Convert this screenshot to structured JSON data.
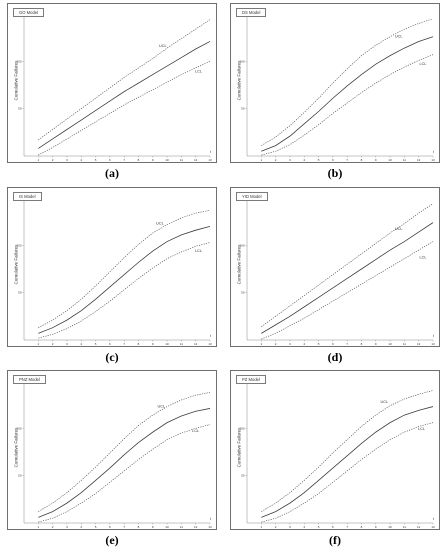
{
  "figure": {
    "panels": [
      {
        "id": "a",
        "caption": "(a)",
        "model_label": "GO Model",
        "chart_data": {
          "type": "line",
          "xlabel": "t",
          "ylabel": "Cumulative Failures",
          "xlim": [
            0,
            13
          ],
          "ylim": [
            0,
            150
          ],
          "x_ticks": [
            "1",
            "2",
            "3",
            "4",
            "5",
            "6",
            "7",
            "8",
            "9",
            "10",
            "11",
            "12",
            "13"
          ],
          "y_ticks": [
            "50",
            "100",
            "150"
          ],
          "x": [
            1,
            2,
            3,
            4,
            5,
            6,
            7,
            8,
            9,
            10,
            11,
            12,
            13
          ],
          "series": [
            {
              "name": "UCL",
              "style": "dotted",
              "values": [
                17,
                28,
                39,
                50,
                61,
                72,
                83,
                93,
                103,
                114,
                124,
                134,
                144
              ]
            },
            {
              "name": "",
              "style": "solid",
              "values": [
                8,
                18,
                28,
                38,
                48,
                58,
                68,
                77,
                86,
                95,
                104,
                113,
                121
              ]
            },
            {
              "name": "LCL",
              "style": "dotted",
              "values": [
                1,
                9,
                18,
                27,
                36,
                45,
                54,
                62,
                70,
                78,
                86,
                93,
                100
              ]
            }
          ],
          "annotations": [
            {
              "text": "UCL",
              "x": 9.7,
              "y": 115
            },
            {
              "text": "LCL",
              "x": 12.2,
              "y": 88
            }
          ]
        }
      },
      {
        "id": "b",
        "caption": "(b)",
        "model_label": "DS Model",
        "chart_data": {
          "type": "line",
          "xlabel": "t",
          "ylabel": "Cumulative Failures",
          "xlim": [
            0,
            13
          ],
          "ylim": [
            0,
            150
          ],
          "x_ticks": [
            "1",
            "2",
            "3",
            "4",
            "5",
            "6",
            "7",
            "8",
            "9",
            "10",
            "11",
            "12",
            "13"
          ],
          "y_ticks": [
            "50",
            "100",
            "150"
          ],
          "x": [
            1,
            2,
            3,
            4,
            5,
            6,
            7,
            8,
            9,
            10,
            11,
            12,
            13
          ],
          "series": [
            {
              "name": "UCL",
              "style": "dotted",
              "values": [
                11,
                20,
                32,
                46,
                61,
                77,
                92,
                106,
                117,
                126,
                134,
                140,
                145
              ]
            },
            {
              "name": "",
              "style": "solid",
              "values": [
                5,
                11,
                21,
                34,
                47,
                61,
                74,
                86,
                97,
                106,
                114,
                121,
                126
              ]
            },
            {
              "name": "LCL",
              "style": "dotted",
              "values": [
                1,
                5,
                12,
                22,
                33,
                45,
                56,
                67,
                77,
                86,
                94,
                101,
                107
              ]
            }
          ],
          "annotations": [
            {
              "text": "UCL",
              "x": 10.6,
              "y": 125
            },
            {
              "text": "LCL",
              "x": 12.3,
              "y": 96
            }
          ]
        }
      },
      {
        "id": "c",
        "caption": "(c)",
        "model_label": "IS Model",
        "chart_data": {
          "type": "line",
          "xlabel": "t",
          "ylabel": "Cumulative Failures",
          "xlim": [
            0,
            13
          ],
          "ylim": [
            0,
            150
          ],
          "x_ticks": [
            "1",
            "2",
            "3",
            "4",
            "5",
            "6",
            "7",
            "8",
            "9",
            "10",
            "11",
            "12",
            "13"
          ],
          "y_ticks": [
            "50",
            "100",
            "150"
          ],
          "x": [
            1,
            2,
            3,
            4,
            5,
            6,
            7,
            8,
            9,
            10,
            11,
            12,
            13
          ],
          "series": [
            {
              "name": "UCL",
              "style": "dotted",
              "values": [
                13,
                21,
                31,
                43,
                57,
                72,
                87,
                101,
                113,
                122,
                129,
                134,
                137
              ]
            },
            {
              "name": "",
              "style": "solid",
              "values": [
                7,
                13,
                21,
                31,
                43,
                56,
                69,
                82,
                94,
                104,
                111,
                116,
                120
              ]
            },
            {
              "name": "LCL",
              "style": "dotted",
              "values": [
                2,
                6,
                12,
                20,
                30,
                41,
                53,
                65,
                76,
                86,
                93,
                99,
                103
              ]
            }
          ],
          "annotations": [
            {
              "text": "UCL",
              "x": 9.5,
              "y": 122
            },
            {
              "text": "LCL",
              "x": 12.2,
              "y": 93
            }
          ]
        }
      },
      {
        "id": "d",
        "caption": "(d)",
        "model_label": "YID Model",
        "chart_data": {
          "type": "line",
          "xlabel": "t",
          "ylabel": "Cumulative Failures",
          "xlim": [
            0,
            13
          ],
          "ylim": [
            0,
            150
          ],
          "x_ticks": [
            "1",
            "2",
            "3",
            "4",
            "5",
            "6",
            "7",
            "8",
            "9",
            "10",
            "11",
            "12",
            "13"
          ],
          "y_ticks": [
            "50",
            "100",
            "150"
          ],
          "x": [
            1,
            2,
            3,
            4,
            5,
            6,
            7,
            8,
            9,
            10,
            11,
            12,
            13
          ],
          "series": [
            {
              "name": "UCL",
              "style": "dotted",
              "values": [
                14,
                25,
                36,
                47,
                58,
                69,
                80,
                91,
                102,
                113,
                123,
                134,
                144
              ]
            },
            {
              "name": "",
              "style": "solid",
              "values": [
                7,
                16,
                25,
                35,
                45,
                55,
                65,
                75,
                85,
                95,
                104,
                114,
                124
              ]
            },
            {
              "name": "LCL",
              "style": "dotted",
              "values": [
                1,
                7,
                15,
                23,
                32,
                41,
                50,
                59,
                68,
                77,
                86,
                95,
                104
              ]
            }
          ],
          "annotations": [
            {
              "text": "UCL",
              "x": 10.6,
              "y": 116
            },
            {
              "text": "LCL",
              "x": 12.3,
              "y": 86
            }
          ]
        }
      },
      {
        "id": "e",
        "caption": "(e)",
        "model_label": "PNZ Model",
        "chart_data": {
          "type": "line",
          "xlabel": "t",
          "ylabel": "Cumulative Failures",
          "xlim": [
            0,
            13
          ],
          "ylim": [
            0,
            150
          ],
          "x_ticks": [
            "1",
            "2",
            "3",
            "4",
            "5",
            "6",
            "7",
            "8",
            "9",
            "10",
            "11",
            "12",
            "13"
          ],
          "y_ticks": [
            "50",
            "100",
            "150"
          ],
          "x": [
            1,
            2,
            3,
            4,
            5,
            6,
            7,
            8,
            9,
            10,
            11,
            12,
            13
          ],
          "series": [
            {
              "name": "UCL",
              "style": "dotted",
              "values": [
                12,
                21,
                32,
                45,
                59,
                74,
                89,
                103,
                114,
                123,
                130,
                135,
                138
              ]
            },
            {
              "name": "",
              "style": "solid",
              "values": [
                6,
                12,
                21,
                32,
                45,
                58,
                72,
                85,
                96,
                106,
                113,
                118,
                121
              ]
            },
            {
              "name": "LCL",
              "style": "dotted",
              "values": [
                1,
                5,
                12,
                21,
                31,
                43,
                55,
                67,
                78,
                88,
                95,
                100,
                104
              ]
            }
          ],
          "annotations": [
            {
              "text": "UCL",
              "x": 9.6,
              "y": 122
            },
            {
              "text": "LCL",
              "x": 12.0,
              "y": 96
            }
          ]
        }
      },
      {
        "id": "f",
        "caption": "(f)",
        "model_label": "PZ Model",
        "chart_data": {
          "type": "line",
          "xlabel": "t",
          "ylabel": "Cumulative Failures",
          "xlim": [
            0,
            13
          ],
          "ylim": [
            0,
            150
          ],
          "x_ticks": [
            "1",
            "2",
            "3",
            "4",
            "5",
            "6",
            "7",
            "8",
            "9",
            "10",
            "11",
            "12",
            "13"
          ],
          "y_ticks": [
            "50",
            "100",
            "150"
          ],
          "x": [
            1,
            2,
            3,
            4,
            5,
            6,
            7,
            8,
            9,
            10,
            11,
            12,
            13
          ],
          "series": [
            {
              "name": "UCL",
              "style": "dotted",
              "values": [
                12,
                21,
                32,
                45,
                59,
                74,
                88,
                102,
                114,
                124,
                131,
                136,
                140
              ]
            },
            {
              "name": "",
              "style": "solid",
              "values": [
                6,
                12,
                21,
                32,
                45,
                58,
                71,
                84,
                96,
                106,
                114,
                119,
                123
              ]
            },
            {
              "name": "LCL",
              "style": "dotted",
              "values": [
                1,
                5,
                12,
                21,
                31,
                43,
                55,
                67,
                78,
                88,
                96,
                102,
                106
              ]
            }
          ],
          "annotations": [
            {
              "text": "UCL",
              "x": 9.6,
              "y": 127
            },
            {
              "text": "LCL",
              "x": 12.2,
              "y": 98
            }
          ]
        }
      }
    ]
  },
  "colors": {
    "line": "#3c3c3c",
    "frame": "#6f6f6f",
    "text": "#333333"
  }
}
